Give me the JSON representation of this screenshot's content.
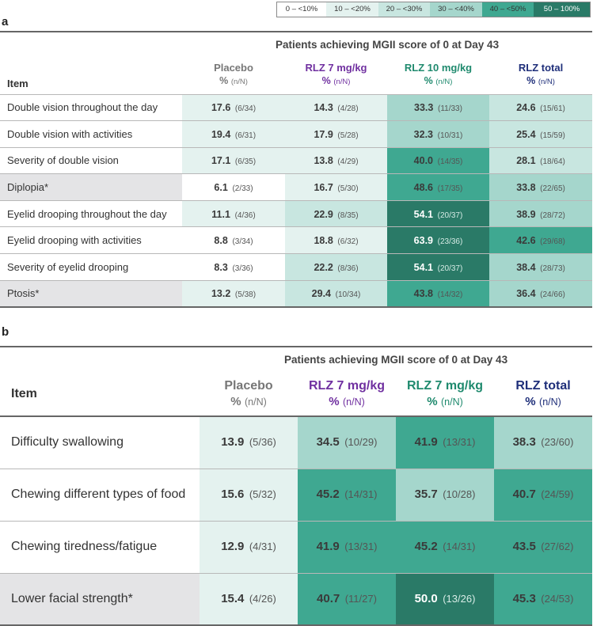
{
  "legend": [
    {
      "label": "0 – <10%",
      "color": "#ffffff"
    },
    {
      "label": "10 – <20%",
      "color": "#e4f2ef"
    },
    {
      "label": "20 – <30%",
      "color": "#c8e6e0"
    },
    {
      "label": "30 – <40%",
      "color": "#a5d6cc"
    },
    {
      "label": "40 – <50%",
      "color": "#3fa891"
    },
    {
      "label": "50 – 100%",
      "color": "#2a7a67"
    }
  ],
  "colors": {
    "placebo": "#777777",
    "rlz7": "#7030a0",
    "rlz10": "#1f8a6e",
    "rlztotal": "#1f2f7a"
  },
  "panel_a": {
    "letter": "a",
    "title": "Patients achieving MGII score of 0 at Day 43",
    "item_header": "Item",
    "groups": [
      {
        "name": "Placebo",
        "pct": "%",
        "nn": "(n/N)"
      },
      {
        "name": "RLZ 7 mg/kg",
        "pct": "%",
        "nn": "(n/N)"
      },
      {
        "name": "RLZ 10 mg/kg",
        "pct": "%",
        "nn": "(n/N)"
      },
      {
        "name": "RLZ total",
        "pct": "%",
        "nn": "(n/N)"
      }
    ],
    "rows": [
      {
        "item": "Double vision throughout the day",
        "shaded": false,
        "cells": [
          {
            "v": "17.6",
            "n": "(6/34)"
          },
          {
            "v": "14.3",
            "n": "(4/28)"
          },
          {
            "v": "33.3",
            "n": "(11/33)"
          },
          {
            "v": "24.6",
            "n": "(15/61)"
          }
        ]
      },
      {
        "item": "Double vision with activities",
        "shaded": false,
        "cells": [
          {
            "v": "19.4",
            "n": "(6/31)"
          },
          {
            "v": "17.9",
            "n": "(5/28)"
          },
          {
            "v": "32.3",
            "n": "(10/31)"
          },
          {
            "v": "25.4",
            "n": "(15/59)"
          }
        ]
      },
      {
        "item": "Severity of double vision",
        "shaded": false,
        "cells": [
          {
            "v": "17.1",
            "n": "(6/35)"
          },
          {
            "v": "13.8",
            "n": "(4/29)"
          },
          {
            "v": "40.0",
            "n": "(14/35)"
          },
          {
            "v": "28.1",
            "n": "(18/64)"
          }
        ]
      },
      {
        "item": "Diplopia*",
        "shaded": true,
        "cells": [
          {
            "v": "6.1",
            "n": "(2/33)"
          },
          {
            "v": "16.7",
            "n": "(5/30)"
          },
          {
            "v": "48.6",
            "n": "(17/35)"
          },
          {
            "v": "33.8",
            "n": "(22/65)"
          }
        ]
      },
      {
        "item": "Eyelid drooping throughout the day",
        "shaded": false,
        "cells": [
          {
            "v": "11.1",
            "n": "(4/36)"
          },
          {
            "v": "22.9",
            "n": "(8/35)"
          },
          {
            "v": "54.1",
            "n": "(20/37)"
          },
          {
            "v": "38.9",
            "n": "(28/72)"
          }
        ]
      },
      {
        "item": "Eyelid drooping with activities",
        "shaded": false,
        "cells": [
          {
            "v": "8.8",
            "n": "(3/34)"
          },
          {
            "v": "18.8",
            "n": "(6/32)"
          },
          {
            "v": "63.9",
            "n": "(23/36)"
          },
          {
            "v": "42.6",
            "n": "(29/68)"
          }
        ]
      },
      {
        "item": "Severity of eyelid drooping",
        "shaded": false,
        "cells": [
          {
            "v": "8.3",
            "n": "(3/36)"
          },
          {
            "v": "22.2",
            "n": "(8/36)"
          },
          {
            "v": "54.1",
            "n": "(20/37)"
          },
          {
            "v": "38.4",
            "n": "(28/73)"
          }
        ]
      },
      {
        "item": "Ptosis*",
        "shaded": true,
        "cells": [
          {
            "v": "13.2",
            "n": "(5/38)"
          },
          {
            "v": "29.4",
            "n": "(10/34)"
          },
          {
            "v": "43.8",
            "n": "(14/32)"
          },
          {
            "v": "36.4",
            "n": "(24/66)"
          }
        ]
      }
    ]
  },
  "panel_b": {
    "letter": "b",
    "title": "Patients achieving MGII score of 0 at Day 43",
    "item_header": "Item",
    "groups": [
      {
        "name": "Placebo",
        "pct": "%",
        "nn": "(n/N)"
      },
      {
        "name": "RLZ 7 mg/kg",
        "pct": "%",
        "nn": "(n/N)"
      },
      {
        "name": "RLZ 7 mg/kg",
        "pct": "%",
        "nn": "(n/N)"
      },
      {
        "name": "RLZ total",
        "pct": "%",
        "nn": "(n/N)"
      }
    ],
    "rows": [
      {
        "item": "Difficulty swallowing",
        "shaded": false,
        "cells": [
          {
            "v": "13.9",
            "n": "(5/36)"
          },
          {
            "v": "34.5",
            "n": "(10/29)"
          },
          {
            "v": "41.9",
            "n": "(13/31)"
          },
          {
            "v": "38.3",
            "n": "(23/60)"
          }
        ]
      },
      {
        "item": "Chewing different types of food",
        "shaded": false,
        "cells": [
          {
            "v": "15.6",
            "n": "(5/32)"
          },
          {
            "v": "45.2",
            "n": "(14/31)"
          },
          {
            "v": "35.7",
            "n": "(10/28)"
          },
          {
            "v": "40.7",
            "n": "(24/59)"
          }
        ]
      },
      {
        "item": "Chewing tiredness/fatigue",
        "shaded": false,
        "cells": [
          {
            "v": "12.9",
            "n": "(4/31)"
          },
          {
            "v": "41.9",
            "n": "(13/31)"
          },
          {
            "v": "45.2",
            "n": "(14/31)"
          },
          {
            "v": "43.5",
            "n": "(27/62)"
          }
        ]
      },
      {
        "item": "Lower facial strength*",
        "shaded": true,
        "cells": [
          {
            "v": "15.4",
            "n": "(4/26)"
          },
          {
            "v": "40.7",
            "n": "(11/27)"
          },
          {
            "v": "50.0",
            "n": "(13/26)"
          },
          {
            "v": "45.3",
            "n": "(24/53)"
          }
        ]
      }
    ]
  },
  "chart_data": [
    {
      "type": "table",
      "panel": "a",
      "title": "Patients achieving MGII score of 0 at Day 43",
      "columns": [
        "Placebo",
        "RLZ 7 mg/kg",
        "RLZ 10 mg/kg",
        "RLZ total"
      ],
      "unit": "% (n/N)",
      "rows": [
        {
          "item": "Double vision throughout the day",
          "values": [
            17.6,
            14.3,
            33.3,
            24.6
          ]
        },
        {
          "item": "Double vision with activities",
          "values": [
            19.4,
            17.9,
            32.3,
            25.4
          ]
        },
        {
          "item": "Severity of double vision",
          "values": [
            17.1,
            13.8,
            40.0,
            28.1
          ]
        },
        {
          "item": "Diplopia*",
          "values": [
            6.1,
            16.7,
            48.6,
            33.8
          ]
        },
        {
          "item": "Eyelid drooping throughout the day",
          "values": [
            11.1,
            22.9,
            54.1,
            38.9
          ]
        },
        {
          "item": "Eyelid drooping with activities",
          "values": [
            8.8,
            18.8,
            63.9,
            42.6
          ]
        },
        {
          "item": "Severity of eyelid drooping",
          "values": [
            8.3,
            22.2,
            54.1,
            38.4
          ]
        },
        {
          "item": "Ptosis*",
          "values": [
            13.2,
            29.4,
            43.8,
            36.4
          ]
        }
      ]
    },
    {
      "type": "table",
      "panel": "b",
      "title": "Patients achieving MGII score of 0 at Day 43",
      "columns": [
        "Placebo",
        "RLZ 7 mg/kg",
        "RLZ 7 mg/kg",
        "RLZ total"
      ],
      "unit": "% (n/N)",
      "rows": [
        {
          "item": "Difficulty swallowing",
          "values": [
            13.9,
            34.5,
            41.9,
            38.3
          ]
        },
        {
          "item": "Chewing different types of food",
          "values": [
            15.6,
            45.2,
            35.7,
            40.7
          ]
        },
        {
          "item": "Chewing tiredness/fatigue",
          "values": [
            12.9,
            41.9,
            45.2,
            43.5
          ]
        },
        {
          "item": "Lower facial strength*",
          "values": [
            15.4,
            40.7,
            50.0,
            45.3
          ]
        }
      ]
    }
  ]
}
